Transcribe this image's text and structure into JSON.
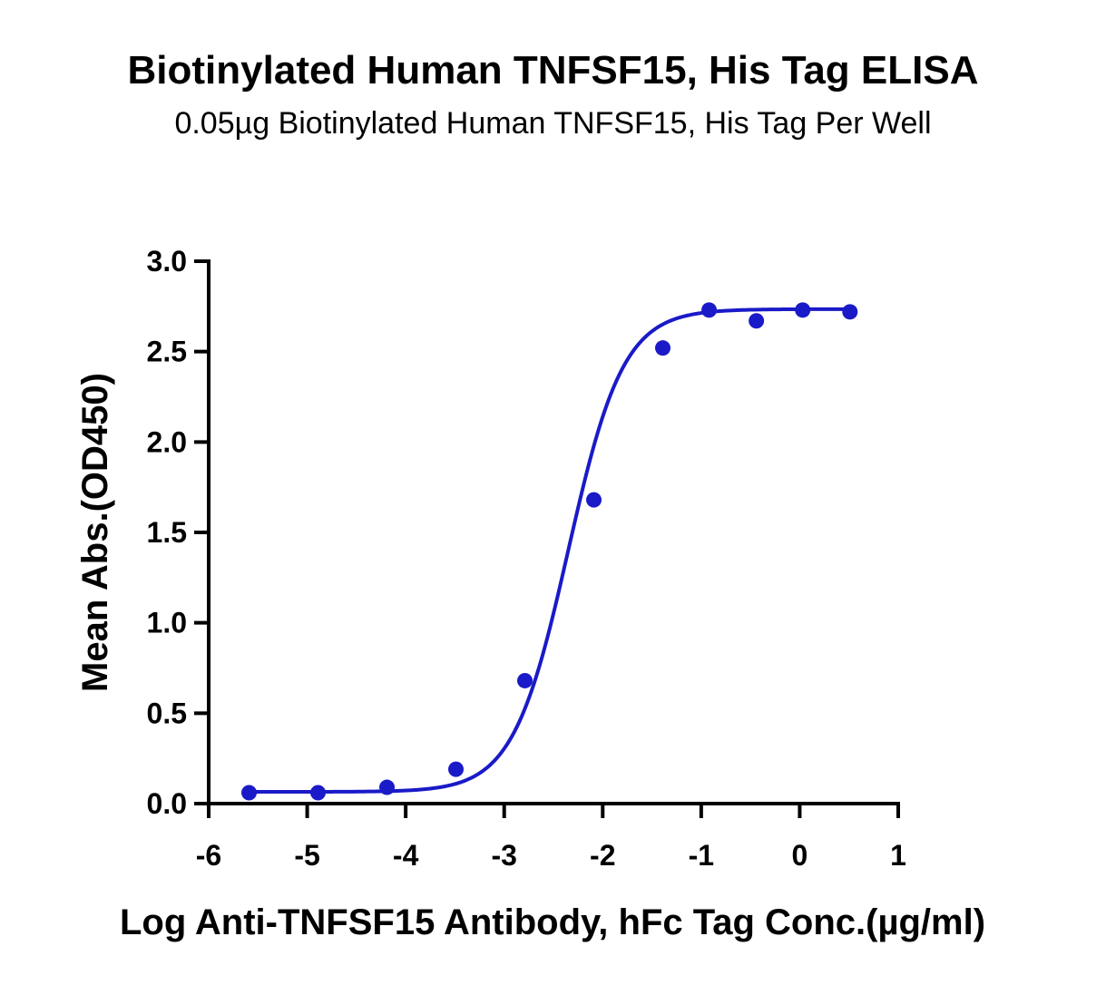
{
  "chart_data": {
    "type": "scatter",
    "title": "Biotinylated Human TNFSF15, His Tag ELISA",
    "subtitle": "0.05µg Biotinylated Human TNFSF15, His Tag Per Well",
    "xlabel": "Log Anti-TNFSF15 Antibody, hFc Tag Conc.(µg/ml)",
    "ylabel": "Mean Abs.(OD450)",
    "xlim": [
      -6,
      1
    ],
    "ylim": [
      0,
      3.0
    ],
    "xticks": [
      "-6",
      "-5",
      "-4",
      "-3",
      "-2",
      "-1",
      "0",
      "1"
    ],
    "yticks": [
      "0.0",
      "0.5",
      "1.0",
      "1.5",
      "2.0",
      "2.5",
      "3.0"
    ],
    "grid": false,
    "series": [
      {
        "color": "#1a1ac8",
        "points": [
          {
            "x": -5.59,
            "y": 0.06
          },
          {
            "x": -4.89,
            "y": 0.06
          },
          {
            "x": -4.19,
            "y": 0.09
          },
          {
            "x": -3.49,
            "y": 0.19
          },
          {
            "x": -2.79,
            "y": 0.68
          },
          {
            "x": -2.09,
            "y": 1.68
          },
          {
            "x": -1.39,
            "y": 2.52
          },
          {
            "x": -0.92,
            "y": 2.73
          },
          {
            "x": -0.44,
            "y": 2.67
          },
          {
            "x": 0.03,
            "y": 2.73
          },
          {
            "x": 0.51,
            "y": 2.72
          }
        ],
        "fit": {
          "model": "4PL",
          "bottom": 0.065,
          "top": 2.735,
          "logEC50": -2.35,
          "hill": 1.55
        }
      }
    ]
  }
}
